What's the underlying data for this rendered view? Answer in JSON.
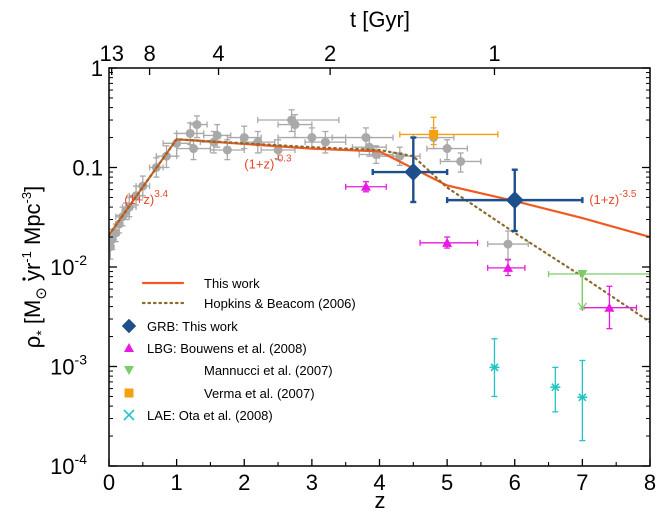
{
  "chart_data": {
    "type": "scatter",
    "xlabel": "z",
    "x2label": "t [Gyr]",
    "ylabel_parts": {
      "rho": "ρ",
      "sub": "*",
      "open": "[M",
      "sun": "⊙",
      "yr": " yr",
      "yr_exp": "-1",
      "mpc": " Mpc",
      "mpc_exp": "-3",
      "close": "]"
    },
    "xlim": [
      0,
      8
    ],
    "ylim": [
      0.0001,
      1
    ],
    "yscale": "log",
    "x_ticks": [
      "0",
      "1",
      "2",
      "3",
      "4",
      "5",
      "6",
      "7",
      "8"
    ],
    "y_ticks": [
      {
        "value": 0.0001,
        "label": "10",
        "exp": "-4"
      },
      {
        "value": 0.001,
        "label": "10",
        "exp": "-3"
      },
      {
        "value": 0.01,
        "label": "10",
        "exp": "-2"
      },
      {
        "value": 0.1,
        "label": "0.1",
        "exp": ""
      },
      {
        "value": 1,
        "label": "1",
        "exp": ""
      }
    ],
    "top_ticks": [
      {
        "label": "13",
        "z": 0.04
      },
      {
        "label": "8",
        "z": 0.6
      },
      {
        "label": "4",
        "z": 1.62
      },
      {
        "label": "2",
        "z": 3.27
      },
      {
        "label": "1",
        "z": 5.7
      }
    ],
    "annotations": [
      {
        "base": "(1+z)",
        "exp": "3.4",
        "x": 0.55,
        "y": 0.043
      },
      {
        "base": "(1+z)",
        "exp": "-0.3",
        "x": 2.35,
        "y": 0.098
      },
      {
        "base": "(1+z)",
        "exp": "-3.5",
        "x": 7.45,
        "y": 0.043
      }
    ],
    "colors": {
      "this_work": "#f05a22",
      "hopkins": "#8b6a2c",
      "grb": "#1c4f8c",
      "lbg": "#e81ae0",
      "mannucci": "#7ccd6a",
      "verma": "#f4a00f",
      "lae": "#22c4c4",
      "compilation": "#a9a9a9"
    },
    "series": [
      {
        "name": "This work",
        "type": "line",
        "color": "#f05a22",
        "x": [
          0,
          1,
          3,
          4,
          5,
          6,
          7,
          8
        ],
        "y": [
          0.021,
          0.192,
          0.155,
          0.145,
          0.066,
          0.046,
          0.031,
          0.02
        ]
      },
      {
        "name": "Hopkins & Beacom (2006)",
        "type": "dotted",
        "color": "#8b6a2c",
        "x": [
          0,
          1,
          3,
          4,
          4.5,
          5,
          6,
          7,
          8
        ],
        "y": [
          0.021,
          0.192,
          0.16,
          0.15,
          0.13,
          0.063,
          0.022,
          0.008,
          0.0028
        ]
      },
      {
        "name": "GRB: This work",
        "type": "diamond",
        "color": "#1c4f8c",
        "points": [
          {
            "x": 4.5,
            "y": 0.09,
            "xlo": 3.9,
            "xhi": 5.0,
            "ylo": 0.045,
            "yhi": 0.2
          },
          {
            "x": 6.0,
            "y": 0.047,
            "xlo": 5.0,
            "xhi": 7.0,
            "ylo": 0.023,
            "yhi": 0.095
          }
        ]
      },
      {
        "name": "LBG:  Bouwens et al. (2008)",
        "type": "triangle-up",
        "color": "#e81ae0",
        "points": [
          {
            "x": 3.8,
            "y": 0.064,
            "xlo": 3.5,
            "xhi": 4.1,
            "ylo": 0.057,
            "yhi": 0.072
          },
          {
            "x": 5.0,
            "y": 0.0175,
            "xlo": 4.6,
            "xhi": 5.45,
            "ylo": 0.0155,
            "yhi": 0.02
          },
          {
            "x": 5.9,
            "y": 0.0098,
            "xlo": 5.6,
            "xhi": 6.15,
            "ylo": 0.0082,
            "yhi": 0.0118
          },
          {
            "x": 7.4,
            "y": 0.0039,
            "xlo": 7.0,
            "xhi": 7.8,
            "ylo": 0.0024,
            "yhi": 0.0064
          }
        ]
      },
      {
        "name": "Mannucci et al. (2007)",
        "type": "triangle-down",
        "color": "#7ccd6a",
        "points": [
          {
            "x": 7.0,
            "y": 0.0085,
            "xlo": 6.5,
            "xhi": 8.0,
            "ylo": 0.0038,
            "yhi": 0.0085
          }
        ]
      },
      {
        "name": "Verma et al. (2007)",
        "type": "square",
        "color": "#f4a00f",
        "points": [
          {
            "x": 4.8,
            "y": 0.215,
            "xlo": 4.3,
            "xhi": 5.75,
            "ylo": 0.17,
            "yhi": 0.32
          }
        ]
      },
      {
        "name": "LAE:  Ota et al. (2008)",
        "type": "star",
        "color": "#22c4c4",
        "points": [
          {
            "x": 5.7,
            "y": 0.00098,
            "xlo": 5.7,
            "xhi": 5.7,
            "ylo": 0.0005,
            "yhi": 0.0019
          },
          {
            "x": 6.6,
            "y": 0.00062,
            "xlo": 6.6,
            "xhi": 6.6,
            "ylo": 0.00035,
            "yhi": 0.00098
          },
          {
            "x": 7.0,
            "y": 0.00049,
            "xlo": 7.0,
            "xhi": 7.0,
            "ylo": 0.00018,
            "yhi": 0.00115
          }
        ]
      },
      {
        "type": "circle",
        "color": "#a9a9a9",
        "points": [
          {
            "x": 0.02,
            "y": 0.016,
            "xlo": 0.0,
            "xhi": 0.05,
            "ylo": 0.012,
            "yhi": 0.021
          },
          {
            "x": 0.05,
            "y": 0.019,
            "xlo": 0.0,
            "xhi": 0.1,
            "ylo": 0.015,
            "yhi": 0.024
          },
          {
            "x": 0.1,
            "y": 0.022,
            "xlo": 0.05,
            "xhi": 0.15,
            "ylo": 0.018,
            "yhi": 0.027
          },
          {
            "x": 0.15,
            "y": 0.027,
            "xlo": 0.1,
            "xhi": 0.2,
            "ylo": 0.022,
            "yhi": 0.033
          },
          {
            "x": 0.2,
            "y": 0.032,
            "xlo": 0.1,
            "xhi": 0.3,
            "ylo": 0.026,
            "yhi": 0.04
          },
          {
            "x": 0.25,
            "y": 0.036,
            "xlo": 0.2,
            "xhi": 0.3,
            "ylo": 0.03,
            "yhi": 0.044
          },
          {
            "x": 0.3,
            "y": 0.04,
            "xlo": 0.2,
            "xhi": 0.4,
            "ylo": 0.032,
            "yhi": 0.05
          },
          {
            "x": 0.4,
            "y": 0.052,
            "xlo": 0.3,
            "xhi": 0.5,
            "ylo": 0.042,
            "yhi": 0.065
          },
          {
            "x": 0.5,
            "y": 0.065,
            "xlo": 0.4,
            "xhi": 0.6,
            "ylo": 0.052,
            "yhi": 0.082
          },
          {
            "x": 0.7,
            "y": 0.1,
            "xlo": 0.6,
            "xhi": 0.8,
            "ylo": 0.08,
            "yhi": 0.125
          },
          {
            "x": 0.85,
            "y": 0.13,
            "xlo": 0.7,
            "xhi": 1.0,
            "ylo": 0.1,
            "yhi": 0.165
          },
          {
            "x": 1.0,
            "y": 0.175,
            "xlo": 0.8,
            "xhi": 1.2,
            "ylo": 0.13,
            "yhi": 0.22
          },
          {
            "x": 1.2,
            "y": 0.22,
            "xlo": 1.0,
            "xhi": 1.4,
            "ylo": 0.17,
            "yhi": 0.28
          },
          {
            "x": 1.3,
            "y": 0.27,
            "xlo": 1.2,
            "xhi": 1.45,
            "ylo": 0.2,
            "yhi": 0.33
          },
          {
            "x": 1.25,
            "y": 0.155,
            "xlo": 1.0,
            "xhi": 1.5,
            "ylo": 0.12,
            "yhi": 0.19
          },
          {
            "x": 1.55,
            "y": 0.18,
            "xlo": 1.35,
            "xhi": 1.75,
            "ylo": 0.14,
            "yhi": 0.23
          },
          {
            "x": 1.6,
            "y": 0.21,
            "xlo": 1.4,
            "xhi": 1.8,
            "ylo": 0.16,
            "yhi": 0.27
          },
          {
            "x": 1.75,
            "y": 0.15,
            "xlo": 1.5,
            "xhi": 2.0,
            "ylo": 0.12,
            "yhi": 0.19
          },
          {
            "x": 2.0,
            "y": 0.2,
            "xlo": 1.75,
            "xhi": 2.25,
            "ylo": 0.155,
            "yhi": 0.26
          },
          {
            "x": 2.2,
            "y": 0.18,
            "xlo": 1.95,
            "xhi": 2.45,
            "ylo": 0.14,
            "yhi": 0.23
          },
          {
            "x": 2.5,
            "y": 0.15,
            "xlo": 2.25,
            "xhi": 2.75,
            "ylo": 0.12,
            "yhi": 0.19
          },
          {
            "x": 2.7,
            "y": 0.3,
            "xlo": 2.2,
            "xhi": 3.4,
            "ylo": 0.23,
            "yhi": 0.38
          },
          {
            "x": 2.75,
            "y": 0.27,
            "xlo": 2.5,
            "xhi": 3.0,
            "ylo": 0.2,
            "yhi": 0.34
          },
          {
            "x": 3.0,
            "y": 0.2,
            "xlo": 2.5,
            "xhi": 3.5,
            "ylo": 0.155,
            "yhi": 0.25
          },
          {
            "x": 3.2,
            "y": 0.18,
            "xlo": 2.9,
            "xhi": 3.5,
            "ylo": 0.14,
            "yhi": 0.23
          },
          {
            "x": 3.8,
            "y": 0.2,
            "xlo": 3.3,
            "xhi": 4.2,
            "ylo": 0.155,
            "yhi": 0.25
          },
          {
            "x": 3.85,
            "y": 0.16,
            "xlo": 3.6,
            "xhi": 4.1,
            "ylo": 0.13,
            "yhi": 0.2
          },
          {
            "x": 3.95,
            "y": 0.135,
            "xlo": 3.7,
            "xhi": 4.2,
            "ylo": 0.11,
            "yhi": 0.165
          },
          {
            "x": 4.3,
            "y": 0.13,
            "xlo": 4.0,
            "xhi": 4.6,
            "ylo": 0.105,
            "yhi": 0.16
          },
          {
            "x": 4.8,
            "y": 0.2,
            "xlo": 4.5,
            "xhi": 5.1,
            "ylo": 0.155,
            "yhi": 0.25
          },
          {
            "x": 5.0,
            "y": 0.155,
            "xlo": 4.7,
            "xhi": 5.3,
            "ylo": 0.12,
            "yhi": 0.19
          },
          {
            "x": 5.2,
            "y": 0.115,
            "xlo": 4.9,
            "xhi": 5.5,
            "ylo": 0.09,
            "yhi": 0.14
          },
          {
            "x": 5.9,
            "y": 0.017,
            "xlo": 5.6,
            "xhi": 6.2,
            "ylo": 0.012,
            "yhi": 0.023
          }
        ]
      }
    ]
  }
}
